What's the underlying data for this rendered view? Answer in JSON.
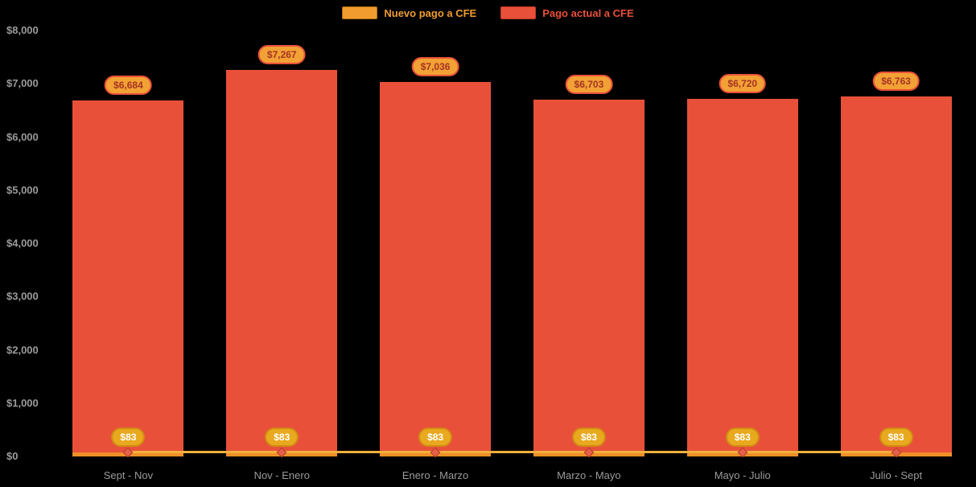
{
  "legend": {
    "items": [
      {
        "label": "Nuevo pago a CFE",
        "color": "#f09c2e",
        "border": "#b06f12",
        "text_color": "#ef9c30"
      },
      {
        "label": "Pago actual a CFE",
        "color": "#e8503a",
        "border": "#c23a28",
        "text_color": "#e8503a"
      }
    ]
  },
  "chart_data": {
    "type": "bar",
    "title": "",
    "categories": [
      "Sept - Nov",
      "Nov - Enero",
      "Enero - Marzo",
      "Marzo - Mayo",
      "Mayo - Julio",
      "Julio - Sept"
    ],
    "series": [
      {
        "name": "Nuevo pago a CFE",
        "type": "line",
        "color": "#f2b13c",
        "bar_color": "#ee8f28",
        "marker_color": "#e8604a",
        "marker_border": "#b03a28",
        "values": [
          83,
          83,
          83,
          83,
          83,
          83
        ],
        "labels": [
          "$83",
          "$83",
          "$83",
          "$83",
          "$83",
          "$83"
        ],
        "label_bg": "#e9a91f",
        "label_text": "#ffffff",
        "label_border": "#d18a12"
      },
      {
        "name": "Pago actual a CFE",
        "type": "bar",
        "color": "#e8503a",
        "values": [
          6684,
          7267,
          7036,
          6703,
          6720,
          6763
        ],
        "labels": [
          "$6,684",
          "$7,267",
          "$7,036",
          "$6,703",
          "$6,720",
          "$6,763"
        ],
        "label_bg": "#f2a134",
        "label_text": "#a53325",
        "label_border": "#e8503a"
      }
    ],
    "ylim": [
      0,
      8000
    ],
    "yticks": [
      {
        "value": 0,
        "label": "$0"
      },
      {
        "value": 1000,
        "label": "$1,000"
      },
      {
        "value": 2000,
        "label": "$2,000"
      },
      {
        "value": 3000,
        "label": "$3,000"
      },
      {
        "value": 4000,
        "label": "$4,000"
      },
      {
        "value": 5000,
        "label": "$5,000"
      },
      {
        "value": 6000,
        "label": "$6,000"
      },
      {
        "value": 7000,
        "label": "$7,000"
      },
      {
        "value": 8000,
        "label": "$8,000"
      }
    ],
    "grid": false,
    "legend_position": "top",
    "background": "#000000",
    "axis_text_color": "#9a9a9a"
  }
}
